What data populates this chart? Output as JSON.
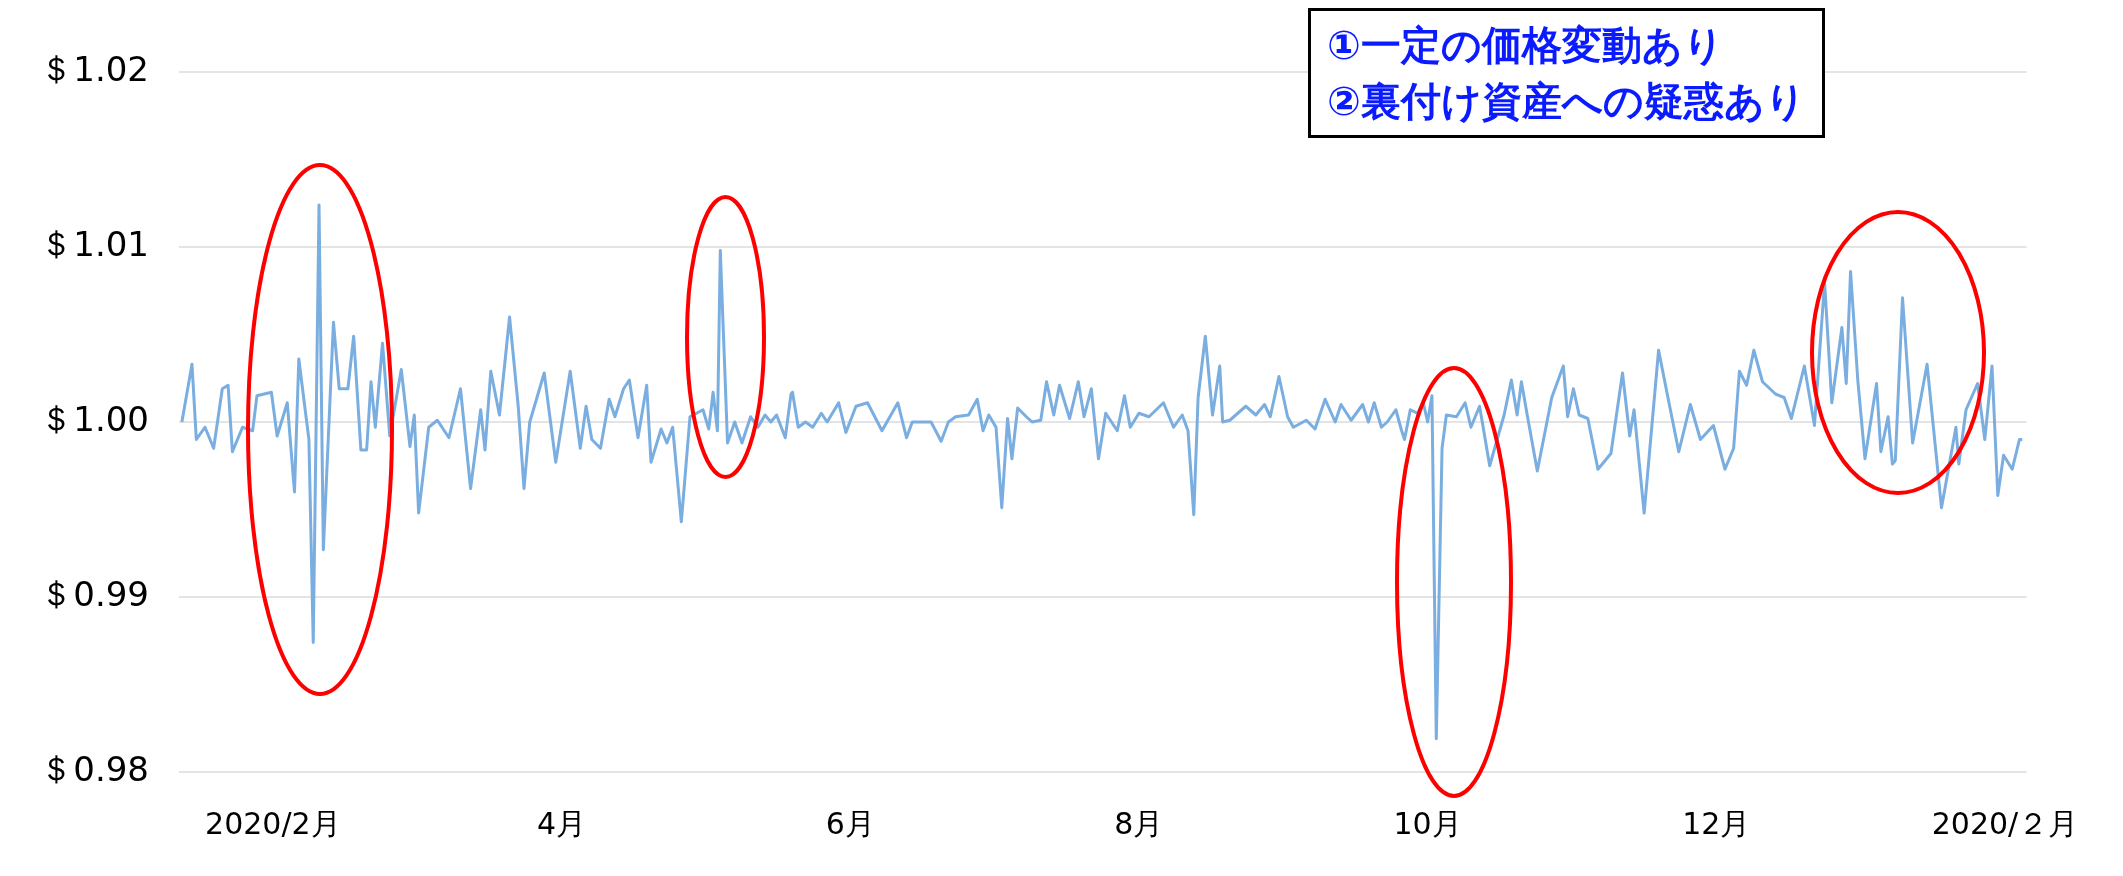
{
  "chart_data": {
    "type": "line",
    "annotations": [
      "①一定の価格変動あり",
      "②裏付け資産への疑惑あり"
    ],
    "xlim": [
      1.35,
      14.15
    ],
    "xticks": [
      {
        "value": 2,
        "label": "2020/2月"
      },
      {
        "value": 4,
        "label": "4月"
      },
      {
        "value": 6,
        "label": "6月"
      },
      {
        "value": 8,
        "label": "8月"
      },
      {
        "value": 10,
        "label": "10月"
      },
      {
        "value": 12,
        "label": "12月"
      },
      {
        "value": 14,
        "label": "2020/２月"
      }
    ],
    "ylim": [
      0.98,
      1.02
    ],
    "yticks": [
      {
        "value": 0.98,
        "label": "＄0.98"
      },
      {
        "value": 0.99,
        "label": "＄0.99"
      },
      {
        "value": 1.0,
        "label": "＄1.00"
      },
      {
        "value": 1.01,
        "label": "＄1.01"
      },
      {
        "value": 1.02,
        "label": "＄1.02"
      }
    ],
    "grid": "y",
    "legend": false,
    "marker": "none",
    "series": [
      {
        "color": "#7aaee0",
        "x": [
          1.37,
          1.44,
          1.47,
          1.53,
          1.59,
          1.65,
          1.69,
          1.72,
          1.79,
          1.86,
          1.89,
          1.99,
          2.03,
          2.1,
          2.15,
          2.18,
          2.25,
          2.28,
          2.32,
          2.35,
          2.42,
          2.46,
          2.52,
          2.56,
          2.61,
          2.65,
          2.68,
          2.71,
          2.76,
          2.81,
          2.89,
          2.95,
          2.98,
          3.01,
          3.08,
          3.14,
          3.22,
          3.3,
          3.37,
          3.44,
          3.47,
          3.51,
          3.57,
          3.64,
          3.7,
          3.74,
          3.78,
          3.88,
          3.96,
          4.06,
          4.13,
          4.17,
          4.21,
          4.27,
          4.33,
          4.37,
          4.43,
          4.47,
          4.53,
          4.59,
          4.62,
          4.69,
          4.73,
          4.77,
          4.83,
          4.89,
          4.98,
          5.02,
          5.05,
          5.08,
          5.1,
          5.15,
          5.2,
          5.25,
          5.31,
          5.36,
          5.41,
          5.45,
          5.49,
          5.55,
          5.59,
          5.6,
          5.64,
          5.69,
          5.74,
          5.8,
          5.84,
          5.92,
          5.97,
          6.04,
          6.12,
          6.22,
          6.33,
          6.39,
          6.43,
          6.56,
          6.63,
          6.68,
          6.73,
          6.82,
          6.88,
          6.92,
          6.96,
          7.01,
          7.05,
          7.09,
          7.12,
          7.16,
          7.22,
          7.26,
          7.32,
          7.36,
          7.41,
          7.45,
          7.52,
          7.58,
          7.62,
          7.67,
          7.72,
          7.77,
          7.85,
          7.9,
          7.94,
          8.0,
          8.07,
          8.17,
          8.24,
          8.3,
          8.34,
          8.38,
          8.41,
          8.46,
          8.51,
          8.56,
          8.58,
          8.63,
          8.74,
          8.81,
          8.87,
          8.91,
          8.97,
          9.03,
          9.07,
          9.16,
          9.22,
          9.29,
          9.36,
          9.4,
          9.47,
          9.55,
          9.59,
          9.63,
          9.68,
          9.72,
          9.78,
          9.82,
          9.84,
          9.88,
          9.93,
          9.97,
          10.0,
          10.03,
          10.06,
          10.1,
          10.13,
          10.2,
          10.26,
          10.3,
          10.36,
          10.43,
          10.53,
          10.58,
          10.62,
          10.65,
          10.69,
          10.76,
          10.86,
          10.94,
          10.97,
          11.01,
          11.05,
          11.11,
          11.18,
          11.27,
          11.35,
          11.4,
          11.43,
          11.5,
          11.6,
          11.66,
          11.74,
          11.82,
          11.89,
          11.98,
          12.06,
          12.12,
          12.16,
          12.21,
          12.26,
          12.32,
          12.41,
          12.47,
          12.52,
          12.61,
          12.68,
          12.75,
          12.8,
          12.87,
          12.9,
          12.93,
          12.98,
          13.03,
          13.11,
          13.14,
          13.19,
          13.22,
          13.24,
          13.29,
          13.36,
          13.46,
          13.56,
          13.66,
          13.68,
          13.73,
          13.81,
          13.86,
          13.91,
          13.95,
          13.99,
          14.05,
          14.1,
          14.12
        ],
        "values": [
          1.0,
          1.0033,
          0.999,
          0.9997,
          0.9985,
          1.0019,
          1.0021,
          0.9983,
          0.9997,
          0.9995,
          1.0015,
          1.0017,
          0.9992,
          1.0011,
          0.996,
          1.0036,
          0.999,
          0.9874,
          1.0124,
          0.9927,
          1.0057,
          1.0019,
          1.0019,
          1.0049,
          0.9984,
          0.9984,
          1.0023,
          0.9997,
          1.0045,
          0.9992,
          1.003,
          0.9986,
          1.0004,
          0.9948,
          0.9997,
          1.0001,
          0.9991,
          1.0019,
          0.9962,
          1.0007,
          0.9984,
          1.0029,
          1.0004,
          1.006,
          1.0009,
          0.9962,
          1.0,
          1.0028,
          0.9977,
          1.0029,
          0.9985,
          1.0009,
          0.999,
          0.9985,
          1.0013,
          1.0003,
          1.0019,
          1.0024,
          0.9991,
          1.0021,
          0.9977,
          0.9996,
          0.9988,
          0.9997,
          0.9943,
          1.0003,
          1.0007,
          0.9996,
          1.0017,
          0.9995,
          1.0098,
          0.9988,
          1.0,
          0.9988,
          1.0003,
          0.9997,
          1.0004,
          1.0,
          1.0004,
          0.9991,
          1.0016,
          1.0017,
          0.9997,
          1.0,
          0.9997,
          1.0005,
          1.0,
          1.0011,
          0.9994,
          1.0009,
          1.0011,
          0.9995,
          1.0011,
          0.9991,
          1.0,
          1.0,
          0.9989,
          1.0,
          1.0003,
          1.0004,
          1.0013,
          0.9995,
          1.0004,
          0.9997,
          0.9951,
          1.0002,
          0.9979,
          1.0008,
          1.0003,
          1.0,
          1.0001,
          1.0023,
          1.0004,
          1.0021,
          1.0002,
          1.0023,
          1.0003,
          1.0019,
          0.9979,
          1.0005,
          0.9995,
          1.0015,
          0.9997,
          1.0005,
          1.0003,
          1.0011,
          0.9997,
          1.0004,
          0.9995,
          0.9947,
          1.0014,
          1.0049,
          1.0004,
          1.0032,
          1.0,
          1.0001,
          1.0009,
          1.0004,
          1.001,
          1.0003,
          1.0026,
          1.0003,
          0.9997,
          1.0001,
          0.9996,
          1.0013,
          1.0,
          1.001,
          1.0001,
          1.001,
          1.0,
          1.0011,
          0.9997,
          1.0,
          1.0007,
          0.9995,
          0.999,
          1.0007,
          1.0005,
          1.0011,
          1.0,
          1.0015,
          0.9819,
          0.9985,
          1.0004,
          1.0003,
          1.0011,
          0.9997,
          1.0009,
          0.9975,
          1.0004,
          1.0024,
          1.0004,
          1.0023,
          1.0004,
          0.9972,
          1.0014,
          1.0032,
          1.0003,
          1.0019,
          1.0004,
          1.0002,
          0.9973,
          0.9982,
          1.0028,
          0.9992,
          1.0007,
          0.9948,
          1.0041,
          1.0016,
          0.9983,
          1.001,
          0.999,
          0.9998,
          0.9973,
          0.9985,
          1.0029,
          1.0021,
          1.0041,
          1.0023,
          1.0016,
          1.0014,
          1.0002,
          1.0032,
          0.9998,
          1.008,
          1.0011,
          1.0054,
          1.0022,
          1.0086,
          1.0024,
          0.9979,
          1.0022,
          0.9983,
          1.0003,
          0.9976,
          0.9978,
          1.0071,
          0.9988,
          1.0033,
          0.9951,
          0.9997,
          0.9976,
          1.0007,
          1.0022,
          0.999,
          1.0032,
          0.9958,
          0.9981,
          0.9973,
          0.999,
          0.999
        ]
      }
    ]
  }
}
